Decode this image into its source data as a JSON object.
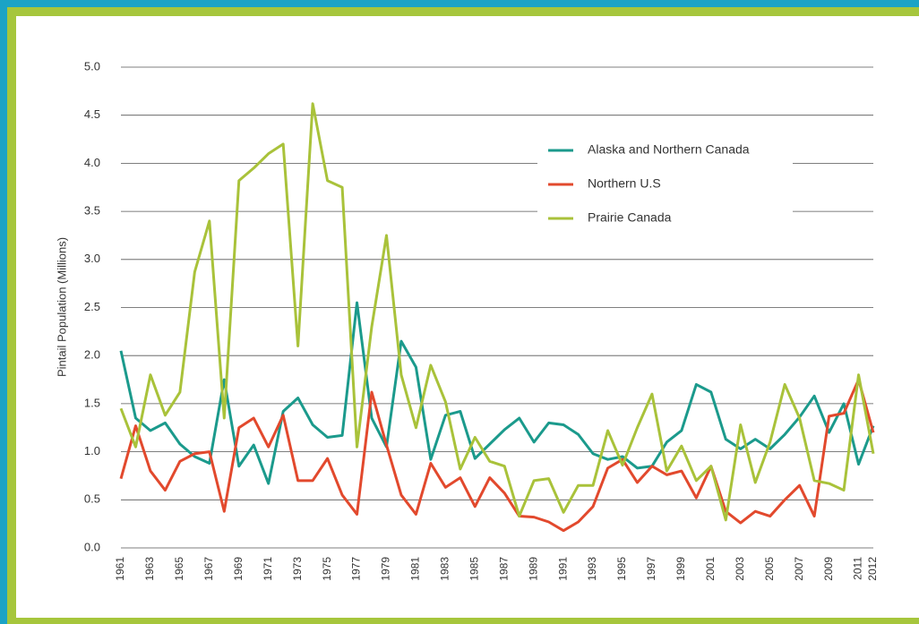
{
  "chart_data": {
    "type": "line",
    "y_label": "Pintail Population (Millions)",
    "categories": [
      "1961",
      null,
      "1963",
      null,
      "1965",
      null,
      "1967",
      null,
      "1969",
      null,
      "1971",
      null,
      "1973",
      null,
      "1975",
      null,
      "1977",
      null,
      "1979",
      null,
      "1981",
      null,
      "1983",
      null,
      "1985",
      null,
      "1987",
      null,
      "1989",
      null,
      "1991",
      null,
      "1993",
      null,
      "1995",
      null,
      "1997",
      null,
      "1999",
      null,
      "2001",
      null,
      "2003",
      null,
      "2005",
      null,
      "2007",
      null,
      "2009",
      null,
      "2011",
      "2012"
    ],
    "series": [
      {
        "name": "Alaska and Northern Canada",
        "color": "#1b9a8c",
        "values": [
          2.05,
          1.35,
          1.22,
          1.3,
          1.08,
          0.95,
          0.88,
          1.75,
          0.85,
          1.07,
          0.67,
          1.42,
          1.56,
          1.28,
          1.15,
          1.17,
          2.55,
          1.35,
          1.05,
          2.15,
          1.88,
          0.92,
          1.38,
          1.42,
          0.93,
          1.08,
          1.23,
          1.35,
          1.1,
          1.3,
          1.28,
          1.18,
          0.98,
          0.92,
          0.95,
          0.83,
          0.85,
          1.1,
          1.22,
          1.7,
          1.62,
          1.13,
          1.03,
          1.13,
          1.03,
          1.18,
          1.36,
          1.58,
          1.2,
          1.5,
          0.87,
          1.27
        ]
      },
      {
        "name": "Northern U.S",
        "color": "#e2492d",
        "values": [
          0.72,
          1.27,
          0.8,
          0.6,
          0.9,
          0.98,
          1.0,
          0.38,
          1.25,
          1.35,
          1.05,
          1.38,
          0.7,
          0.7,
          0.93,
          0.55,
          0.35,
          1.62,
          1.07,
          0.55,
          0.35,
          0.88,
          0.63,
          0.73,
          0.43,
          0.73,
          0.57,
          0.33,
          0.32,
          0.27,
          0.18,
          0.27,
          0.43,
          0.83,
          0.92,
          0.68,
          0.85,
          0.76,
          0.8,
          0.52,
          0.85,
          0.38,
          0.26,
          0.38,
          0.33,
          0.5,
          0.65,
          0.33,
          1.37,
          1.4,
          1.75,
          1.2
        ]
      },
      {
        "name": "Prairie Canada",
        "color": "#a9c23a",
        "values": [
          1.45,
          1.05,
          1.8,
          1.38,
          1.62,
          2.87,
          3.4,
          1.35,
          3.82,
          3.95,
          4.1,
          4.2,
          2.1,
          4.62,
          3.82,
          3.75,
          1.05,
          2.3,
          3.25,
          1.8,
          1.25,
          1.9,
          1.52,
          0.82,
          1.15,
          0.9,
          0.85,
          0.33,
          0.7,
          0.72,
          0.37,
          0.65,
          0.65,
          1.22,
          0.86,
          1.25,
          1.6,
          0.8,
          1.06,
          0.7,
          0.85,
          0.29,
          1.28,
          0.68,
          1.1,
          1.7,
          1.35,
          0.7,
          0.67,
          0.6,
          1.8,
          0.98
        ]
      }
    ],
    "ylim": [
      0,
      5
    ],
    "yticks": [
      {
        "value": 0,
        "label": "0.0"
      },
      {
        "value": 0.5,
        "label": "0.5"
      },
      {
        "value": 1,
        "label": "1.0"
      },
      {
        "value": 1.5,
        "label": "1.5"
      },
      {
        "value": 2,
        "label": "2.0"
      },
      {
        "value": 2.5,
        "label": "2.5"
      },
      {
        "value": 3,
        "label": "3.0"
      },
      {
        "value": 3.5,
        "label": "3.5"
      },
      {
        "value": 4,
        "label": "4.0"
      },
      {
        "value": 4.5,
        "label": "4.5"
      },
      {
        "value": 5,
        "label": "5.0"
      }
    ],
    "grid": true
  }
}
